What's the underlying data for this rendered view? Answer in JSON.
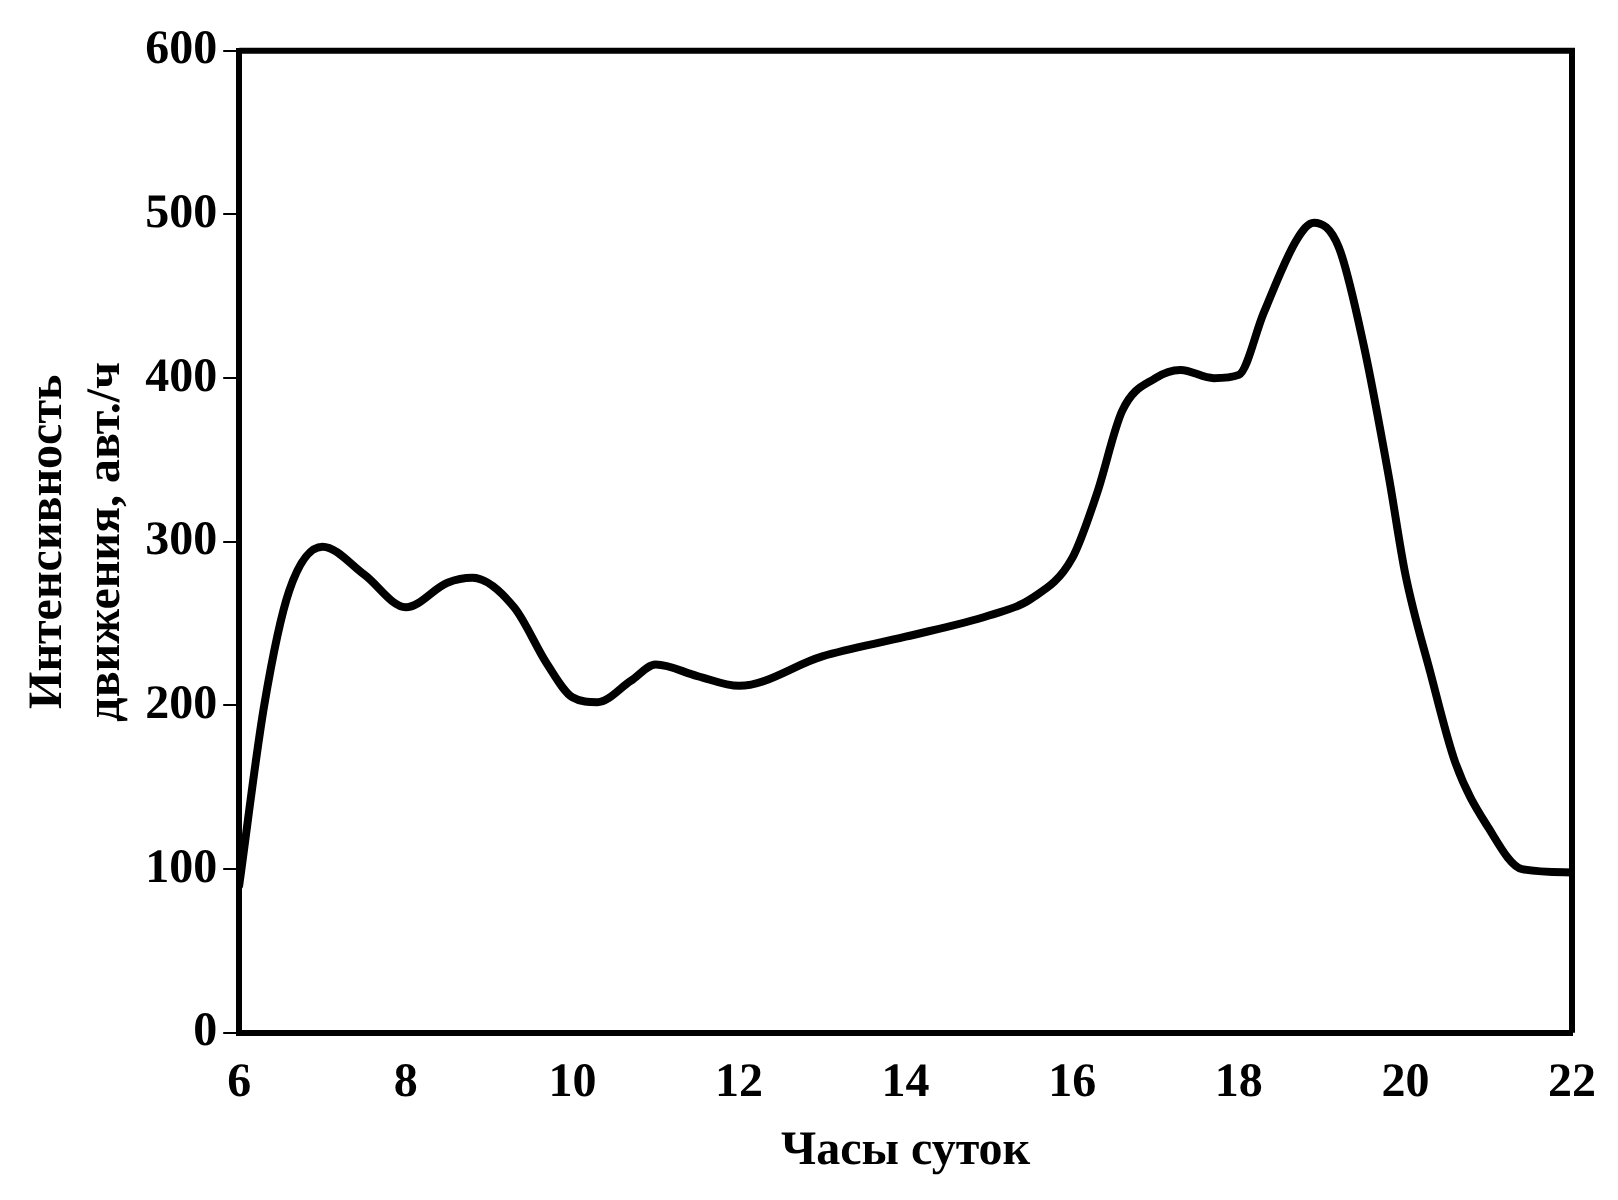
{
  "chart_data": {
    "type": "line",
    "xlabel": "Часы суток",
    "ylabel": "Интенсивность\nдвижения, авт./ч",
    "x": [
      6,
      6.3,
      6.6,
      7,
      7.5,
      8,
      8.5,
      8.8,
      9.3,
      9.7,
      10,
      10.3,
      10.7,
      11,
      11.5,
      12,
      13,
      14,
      15,
      15.5,
      16,
      16.3,
      16.6,
      17,
      17.3,
      17.7,
      18,
      18.3,
      18.7,
      18.9,
      19.2,
      19.5,
      19.8,
      20,
      20.3,
      20.6,
      21,
      21.4,
      22
    ],
    "series": [
      {
        "color": "#000000",
        "values": [
          90,
          200,
          270,
          297,
          280,
          260,
          275,
          278,
          260,
          225,
          205,
          202,
          215,
          225,
          218,
          212,
          230,
          242,
          255,
          265,
          290,
          330,
          380,
          400,
          405,
          400,
          402,
          440,
          485,
          495,
          480,
          420,
          340,
          280,
          220,
          165,
          125,
          100,
          98
        ]
      }
    ],
    "xlim": [
      6,
      22
    ],
    "xticks": [
      6,
      8,
      10,
      12,
      14,
      16,
      18,
      20,
      22
    ],
    "ylim": [
      0,
      600
    ],
    "yticks": [
      0,
      100,
      200,
      300,
      400,
      500,
      600
    ],
    "grid": false,
    "legend": false,
    "marker": "none",
    "line_style": "solid"
  }
}
